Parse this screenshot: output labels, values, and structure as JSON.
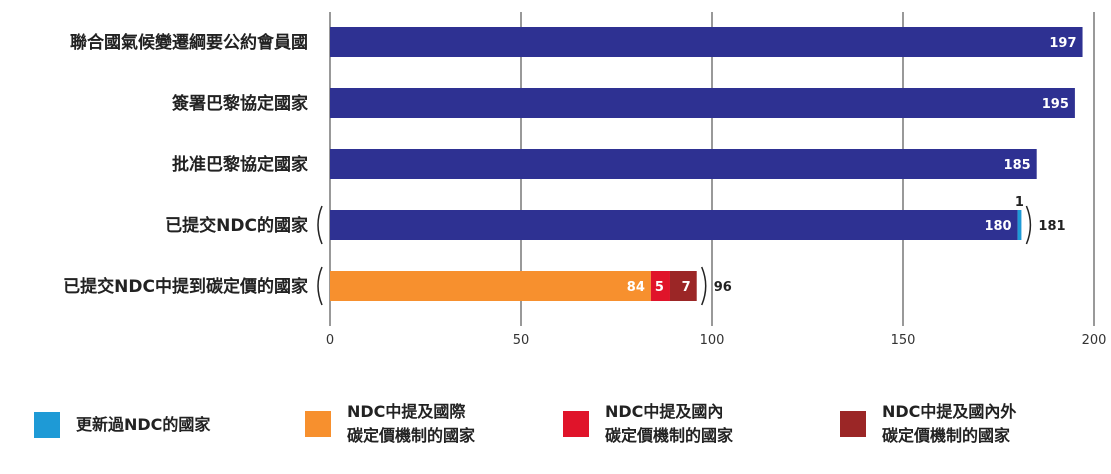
{
  "chart_data": {
    "type": "bar",
    "orientation": "horizontal",
    "stacked": true,
    "categories": [
      "聯合國氣候變遷綱要公約會員國",
      "簽署巴黎協定國家",
      "批准巴黎協定國家",
      "已提交NDC的國家",
      "已提交NDC中提到碳定價的國家"
    ],
    "series": [
      {
        "key": "base",
        "color": "#2e3192",
        "values": [
          197,
          195,
          185,
          180,
          0
        ]
      },
      {
        "key": "updated",
        "color": "#1e9ad6",
        "values": [
          0,
          0,
          0,
          1,
          0
        ]
      },
      {
        "key": "intl",
        "color": "#f7902e",
        "values": [
          0,
          0,
          0,
          0,
          84
        ]
      },
      {
        "key": "domestic",
        "color": "#e0142a",
        "values": [
          0,
          0,
          0,
          0,
          5
        ]
      },
      {
        "key": "both",
        "color": "#9b2626",
        "values": [
          0,
          0,
          0,
          0,
          7
        ]
      }
    ],
    "totals": [
      {
        "category_index": 3,
        "label": "181"
      },
      {
        "category_index": 4,
        "label": "96"
      }
    ],
    "xlim": [
      0,
      200
    ],
    "xticks": [
      0,
      50,
      100,
      150,
      200
    ],
    "grid": true
  },
  "legend": [
    {
      "label": "更新過NDC的國家",
      "color": "#1e9ad6"
    },
    {
      "label": "NDC中提及國際\n碳定價機制的國家",
      "color": "#f7902e"
    },
    {
      "label": "NDC中提及國內\n碳定價機制的國家",
      "color": "#e0142a"
    },
    {
      "label": "NDC中提及國內外\n碳定價機制的國家",
      "color": "#9b2626"
    }
  ]
}
